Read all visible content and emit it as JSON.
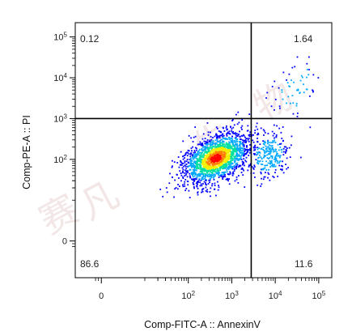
{
  "chart_data": {
    "type": "scatter",
    "subtype": "flow-cytometry-density-plot",
    "xlabel": "Comp-FITC-A :: AnnexinV",
    "ylabel": "Comp-PE-A :: PI",
    "x_scale": "biexponential",
    "y_scale": "biexponential",
    "xlim": [
      -300,
      100000
    ],
    "ylim": [
      -300,
      100000
    ],
    "x_ticks": [
      {
        "value": 0,
        "label": "0"
      },
      {
        "value": 100,
        "label": "10",
        "sup": "2"
      },
      {
        "value": 1000,
        "label": "10",
        "sup": "3"
      },
      {
        "value": 10000,
        "label": "10",
        "sup": "4"
      },
      {
        "value": 100000,
        "label": "10",
        "sup": "5"
      }
    ],
    "y_ticks": [
      {
        "value": 0,
        "label": "0"
      },
      {
        "value": 100,
        "label": "10",
        "sup": "2"
      },
      {
        "value": 1000,
        "label": "10",
        "sup": "3"
      },
      {
        "value": 10000,
        "label": "10",
        "sup": "4"
      },
      {
        "value": 100000,
        "label": "10",
        "sup": "5"
      }
    ],
    "quadrant_gate": {
      "x": 2800,
      "y": 1000
    },
    "quadrants": [
      {
        "position": "top-left",
        "value": "0.12"
      },
      {
        "position": "top-right",
        "value": "1.64"
      },
      {
        "position": "bottom-left",
        "value": "86.6"
      },
      {
        "position": "bottom-right",
        "value": "11.6"
      }
    ],
    "populations": [
      {
        "x_center": 420,
        "y_center": 110,
        "share": 0.866
      },
      {
        "x_center": 7000,
        "y_center": 130,
        "share": 0.116
      },
      {
        "x_center": 30000,
        "y_center": 5000,
        "share": 0.0164
      }
    ],
    "colormap": [
      "#0000ff",
      "#00a8ff",
      "#00e0a0",
      "#f0f000",
      "#ff8000",
      "#ff0000"
    ],
    "grid": false,
    "legend": "none",
    "watermark": "赛凡生物"
  }
}
